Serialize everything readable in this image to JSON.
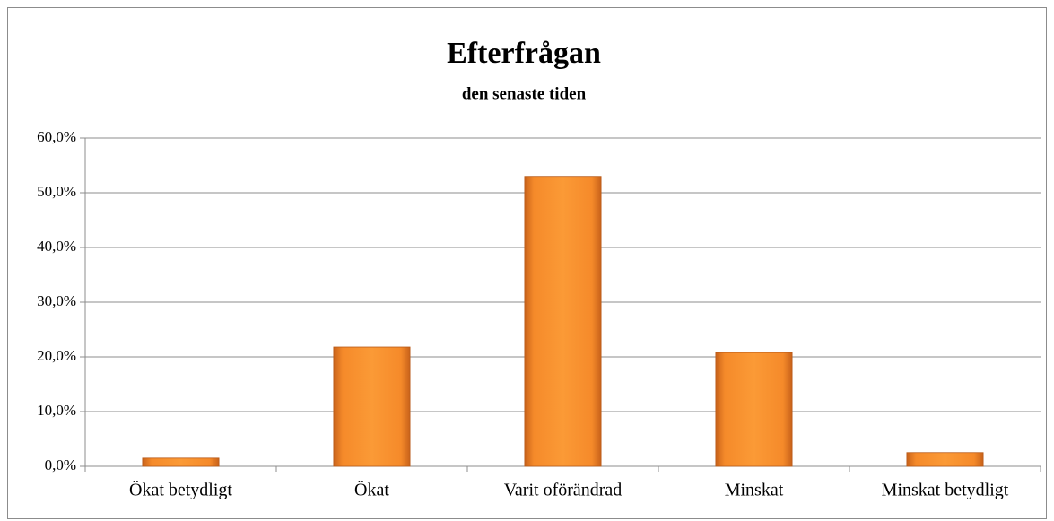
{
  "chart_data": {
    "type": "bar",
    "title": "Efterfrågan",
    "subtitle": "den senaste tiden",
    "categories": [
      "Ökat betydligt",
      "Ökat",
      "Varit oförändrad",
      "Minskat",
      "Minskat betydligt"
    ],
    "values": [
      1.5,
      21.8,
      53,
      20.8,
      2.5
    ],
    "color": "#f7942b",
    "ylim": [
      0,
      60
    ],
    "yticks": [
      {
        "value": 0,
        "label": "0,0%"
      },
      {
        "value": 10,
        "label": "10,0%"
      },
      {
        "value": 20,
        "label": "20,0%"
      },
      {
        "value": 30,
        "label": "30,0%"
      },
      {
        "value": 40,
        "label": "40,0%"
      },
      {
        "value": 50,
        "label": "50,0%"
      },
      {
        "value": 60,
        "label": "60,0%"
      }
    ],
    "grid": true
  }
}
